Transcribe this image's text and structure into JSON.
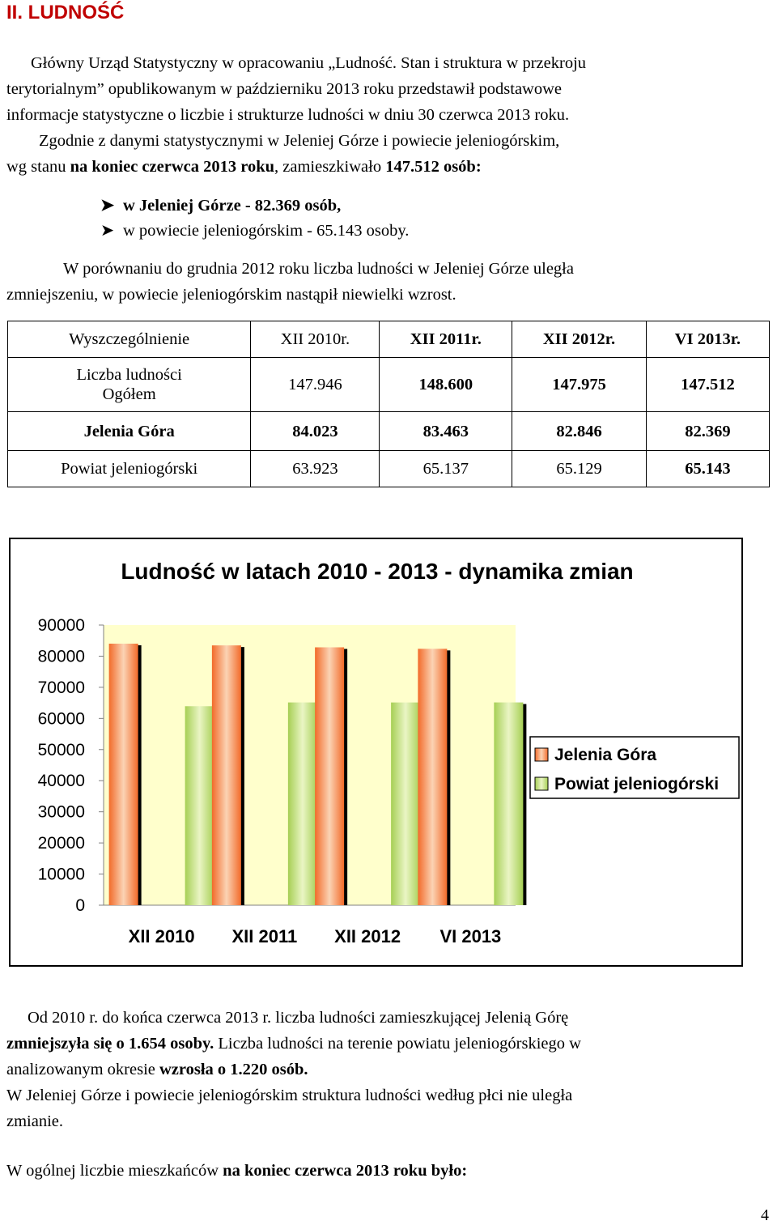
{
  "heading": "II.  LUDNOŚĆ",
  "intro": {
    "l1": "Główny Urząd Statystyczny w opracowaniu „Ludność. Stan i struktura w przekroju",
    "l2": "terytorialnym” opublikowanym w październiku 2013 roku przedstawił podstawowe",
    "l3": "informacje statystyczne o liczbie i strukturze ludności w dniu 30 czerwca 2013 roku."
  },
  "para2": {
    "l1": "Zgodnie z danymi statystycznymi w Jeleniej Górze i powiecie jeleniogórskim,",
    "l2a": "wg stanu ",
    "l2b": "na koniec czerwca 2013 roku",
    "l2c": ", zamieszkiwało ",
    "l2d": "147.512 osób:"
  },
  "bullets": {
    "b1": "w Jeleniej Górze - 82.369 osób,",
    "b2": "w powiecie jeleniogórskim - 65.143 osoby."
  },
  "para3": {
    "l1": "W porównaniu do grudnia 2012 roku liczba ludności w Jeleniej Górze uległa",
    "l2": "zmniejszeniu, w powiecie jeleniogórskim nastąpił niewielki wzrost."
  },
  "table": {
    "headers": [
      "Wyszczególnienie",
      "XII 2010r.",
      "XII 2011r.",
      "XII 2012r.",
      "VI 2013r."
    ],
    "row1": {
      "label1": "Liczba ludności",
      "label2": "Ogółem",
      "values": [
        "147.946",
        "148.600",
        "147.975",
        "147.512"
      ]
    },
    "row2": {
      "label": "Jelenia Góra",
      "values": [
        "84.023",
        "83.463",
        "82.846",
        "82.369"
      ]
    },
    "row3": {
      "label": "Powiat jeleniogórski",
      "values": [
        "63.923",
        "65.137",
        "65.129",
        "65.143"
      ]
    }
  },
  "chart_data": {
    "type": "bar",
    "title": "Ludność w latach 2010 - 2013 - dynamika zmian",
    "categories": [
      "XII 2010",
      "XII 2011",
      "XII 2012",
      "VI 2013"
    ],
    "series": [
      {
        "name": "Jelenia Góra",
        "values": [
          84023,
          83463,
          82846,
          82369
        ],
        "color": "#f26b2a"
      },
      {
        "name": "Powiat jeleniogórski",
        "values": [
          63923,
          65137,
          65129,
          65143
        ],
        "color": "#a6cf54"
      }
    ],
    "ylim": [
      0,
      90000
    ],
    "yticks": [
      "90000",
      "80000",
      "70000",
      "60000",
      "50000",
      "40000",
      "30000",
      "20000",
      "10000",
      "0"
    ],
    "grid": false,
    "legend": "right",
    "plot_background": "#ffffcc"
  },
  "summary": {
    "l1": "Od 2010 r. do końca czerwca 2013 r. liczba ludności zamieszkującej Jelenią Górę",
    "l2a": "zmniejszyła się o 1.654 osoby.",
    "l2b": " Liczba ludności na terenie powiatu jeleniogórskiego w",
    "l3a": "analizowanym okresie ",
    "l3b": "wzrosła o 1.220 osób.",
    "l4": "W Jeleniej Górze i powiecie jeleniogórskim struktura ludności według płci nie uległa",
    "l5": "zmianie."
  },
  "closing": {
    "a": "W ogólnej liczbie mieszkańców ",
    "b": "na koniec czerwca 2013 roku było:"
  },
  "page_number": "4"
}
